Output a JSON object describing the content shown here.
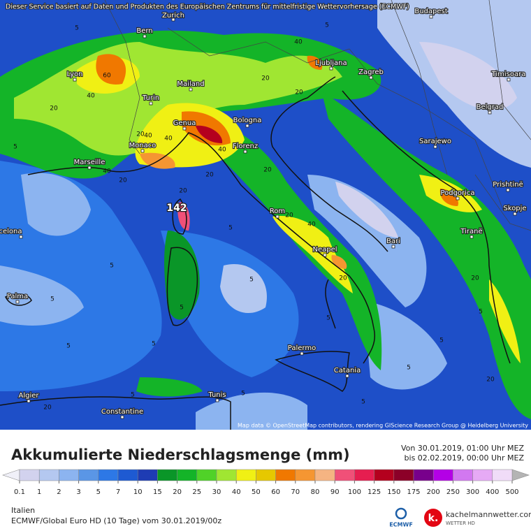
{
  "header": {
    "notice": "Dieser Service basiert auf Daten und Produkten des Europäischen Zentrums für mittelfristige Wettervorhersage (ECMWF)"
  },
  "map": {
    "cities": [
      "Zurich",
      "Budapest",
      "Bern",
      "Lyon",
      "Ljubljana",
      "Zagreb",
      "Timisoara",
      "Mailand",
      "Turin",
      "Belgrad",
      "Genua",
      "Bologna",
      "Monaco",
      "Florenz",
      "Sarajewo",
      "Marseille",
      "Prishtinë",
      "Podgorica",
      "Rom",
      "Skopje",
      "Tiranë",
      "celona",
      "Bari",
      "Neapel",
      "Palma",
      "Palermo",
      "Catania",
      "Algier",
      "Tunis",
      "Constantine"
    ],
    "contour_labels": [
      60,
      40,
      20,
      5,
      40,
      20,
      20,
      40,
      40,
      20,
      40,
      20,
      142,
      5,
      20,
      40,
      20,
      5,
      5,
      5,
      5,
      5,
      5,
      20,
      5,
      5,
      5,
      5,
      20,
      20,
      5,
      40,
      20,
      5,
      20,
      5,
      5,
      5,
      20
    ],
    "credit": "Map data © OpenStreetMap contributors, rendering GIScience Research Group @ Heidelberg University"
  },
  "footer": {
    "title": "Akkumulierte Niederschlagsmenge (mm)",
    "period_from": "Von 30.01.2019, 01:00 Uhr MEZ",
    "period_to": "bis 02.02.2019, 00:00 Uhr MEZ",
    "region": "Italien",
    "model": "ECMWF/Global Euro HD (10 Tage) vom 30.01.2019/00z",
    "ecmwf_logo": "ECMWF",
    "logo_mark": "k.",
    "brand": "kachelmannwetter.com",
    "brand_sub": "WETTER HD"
  },
  "colorbar": {
    "levels": [
      0.1,
      1,
      2,
      3,
      5,
      7,
      10,
      15,
      20,
      25,
      30,
      40,
      50,
      60,
      70,
      80,
      90,
      100,
      125,
      150,
      175,
      200,
      250,
      300,
      400,
      500
    ],
    "colors": [
      "#d2d2ee",
      "#b4c8f0",
      "#8cb4f0",
      "#5a96e6",
      "#2d78e6",
      "#1e5ad2",
      "#1e3cb4",
      "#0a9628",
      "#14b428",
      "#50d228",
      "#a0e632",
      "#f0f014",
      "#e6c800",
      "#f07800",
      "#f59632",
      "#f5b482",
      "#f05078",
      "#e61e50",
      "#b4001e",
      "#8c0028",
      "#78008c",
      "#b400e6",
      "#d278f0",
      "#e6aaf5",
      "#f0dcf8"
    ]
  }
}
